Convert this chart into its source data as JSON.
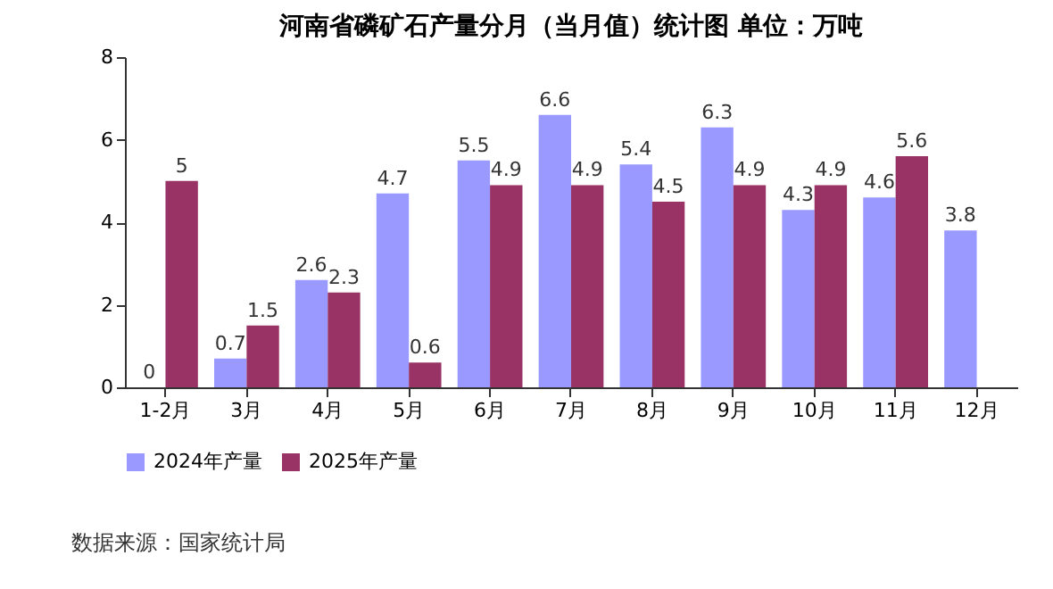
{
  "chart_data": {
    "type": "bar",
    "title": "河南省磷矿石产量分月（当月值）统计图 单位：万吨",
    "categories": [
      "1-2月",
      "3月",
      "4月",
      "5月",
      "6月",
      "7月",
      "8月",
      "9月",
      "10月",
      "11月",
      "12月"
    ],
    "series": [
      {
        "name": "2024年产量",
        "color": "#9999ff",
        "values": [
          0,
          0.7,
          2.6,
          4.7,
          5.5,
          6.6,
          5.4,
          6.3,
          4.3,
          4.6,
          3.8
        ]
      },
      {
        "name": "2025年产量",
        "color": "#993366",
        "values": [
          5,
          1.5,
          2.3,
          0.6,
          4.9,
          4.9,
          4.5,
          4.9,
          4.9,
          5.6,
          null
        ]
      }
    ],
    "ylim": [
      0,
      8
    ],
    "yticks": [
      0,
      2,
      4,
      6,
      8
    ],
    "grid": false,
    "legend": "bottom",
    "data_labels": true,
    "annotations": [
      "数据来源：国家统计局"
    ]
  }
}
